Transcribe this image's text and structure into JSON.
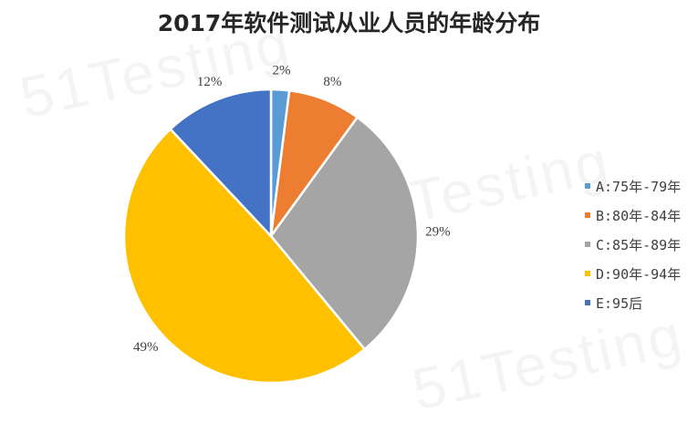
{
  "chart_data": {
    "type": "pie",
    "title": "2017年软件测试从业人员的年龄分布",
    "categories": [
      "A:75年-79年",
      "B:80年-84年",
      "C:85年-89年",
      "D:90年-94年",
      "E:95后"
    ],
    "values": [
      2,
      8,
      29,
      49,
      12
    ],
    "data_labels": [
      "2%",
      "8%",
      "29%",
      "49%",
      "12%"
    ],
    "colors": [
      "#5B9BD5",
      "#ED7D31",
      "#A5A5A5",
      "#FFC000",
      "#4472C4"
    ],
    "legend_position": "right",
    "start": "top, clockwise"
  },
  "watermark": "51Testing"
}
